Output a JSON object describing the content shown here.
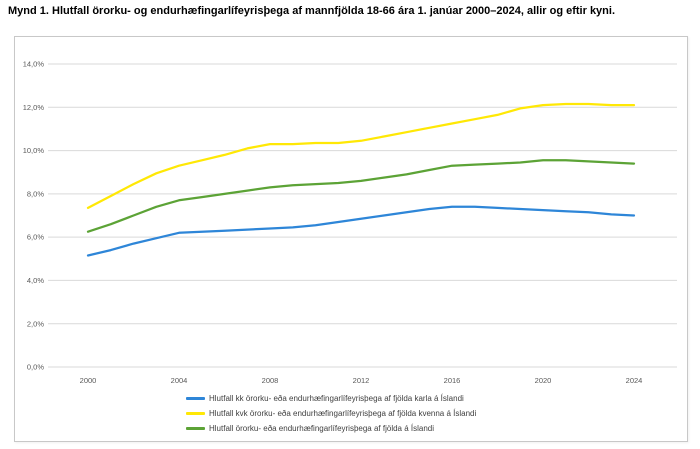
{
  "page": {
    "title": "Mynd 1. Hlutfall örorku- og endurhæfingarlífeyrisþega af mannfjölda 18-66 ára 1. janúar 2000–2024, allir og eftir kyni."
  },
  "colors": {
    "male_line": "#2e86d8",
    "female_line": "#ffe805",
    "all_line": "#5ca336",
    "gridline": "#d9d9d9",
    "axis_text": "#595959",
    "legend_text": "#3f3f3f",
    "chart_border": "#c8c8c8"
  },
  "chart_data": {
    "type": "line",
    "title": "",
    "xlabel": "",
    "ylabel": "",
    "grid": true,
    "legend_position": "bottom",
    "ylim": [
      0,
      14
    ],
    "xlim": [
      2000,
      2024
    ],
    "x": [
      2000,
      2001,
      2002,
      2003,
      2004,
      2005,
      2006,
      2007,
      2008,
      2009,
      2010,
      2011,
      2012,
      2013,
      2014,
      2015,
      2016,
      2017,
      2018,
      2019,
      2020,
      2021,
      2022,
      2023,
      2024
    ],
    "series": [
      {
        "id": "kk",
        "name": "Hlutfall kk örorku- eða endurhæfingarlífeyrisþega af fjölda karla á Íslandi",
        "color": "#2e86d8",
        "values": [
          5.15,
          5.4,
          5.7,
          5.95,
          6.2,
          6.25,
          6.3,
          6.35,
          6.4,
          6.45,
          6.55,
          6.7,
          6.85,
          7.0,
          7.15,
          7.3,
          7.4,
          7.4,
          7.35,
          7.3,
          7.25,
          7.2,
          7.15,
          7.05,
          7.0
        ]
      },
      {
        "id": "kvk",
        "name": "Hlutfall kvk örorku- eða endurhæfingarlífeyrisþega af fjölda kvenna á Íslandi",
        "color": "#ffe805",
        "values": [
          7.35,
          7.9,
          8.45,
          8.95,
          9.3,
          9.55,
          9.8,
          10.1,
          10.3,
          10.3,
          10.35,
          10.35,
          10.45,
          10.65,
          10.85,
          11.05,
          11.25,
          11.45,
          11.65,
          11.95,
          12.1,
          12.15,
          12.15,
          12.1,
          12.1
        ]
      },
      {
        "id": "allir",
        "name": "Hlutfall örorku- eða endurhæfingarlífeyrisþega af fjölda á Íslandi",
        "color": "#5ca336",
        "values": [
          6.25,
          6.6,
          7.0,
          7.4,
          7.7,
          7.85,
          8.0,
          8.15,
          8.3,
          8.4,
          8.45,
          8.5,
          8.6,
          8.75,
          8.9,
          9.1,
          9.3,
          9.35,
          9.4,
          9.45,
          9.55,
          9.55,
          9.5,
          9.45,
          9.4
        ]
      }
    ],
    "y_ticks": [
      {
        "value": 0,
        "label": "0,0%"
      },
      {
        "value": 2,
        "label": "2,0%"
      },
      {
        "value": 4,
        "label": "4,0%"
      },
      {
        "value": 6,
        "label": "6,0%"
      },
      {
        "value": 8,
        "label": "8,0%"
      },
      {
        "value": 10,
        "label": "10,0%"
      },
      {
        "value": 12,
        "label": "12,0%"
      },
      {
        "value": 14,
        "label": "14,0%"
      }
    ],
    "x_ticks": [
      {
        "value": 2000,
        "label": "2000"
      },
      {
        "value": 2004,
        "label": "2004"
      },
      {
        "value": 2008,
        "label": "2008"
      },
      {
        "value": 2012,
        "label": "2012"
      },
      {
        "value": 2016,
        "label": "2016"
      },
      {
        "value": 2020,
        "label": "2020"
      },
      {
        "value": 2024,
        "label": "2024"
      }
    ]
  }
}
